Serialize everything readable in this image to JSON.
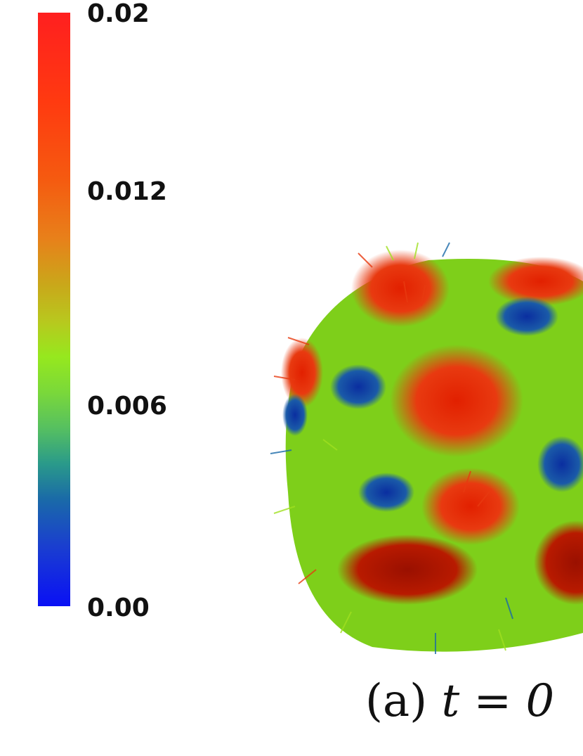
{
  "colorbar": {
    "ticks": [
      "0.02",
      "0.012",
      "0.006",
      "0.00"
    ],
    "colors": [
      "#0a10f5",
      "#1a6aa8",
      "#96e81e",
      "#e8801a",
      "#ff1f1f"
    ]
  },
  "caption": {
    "label": "(a)",
    "equation": "t = 0"
  },
  "figure": {
    "type": "3D surface with vector arrows"
  }
}
